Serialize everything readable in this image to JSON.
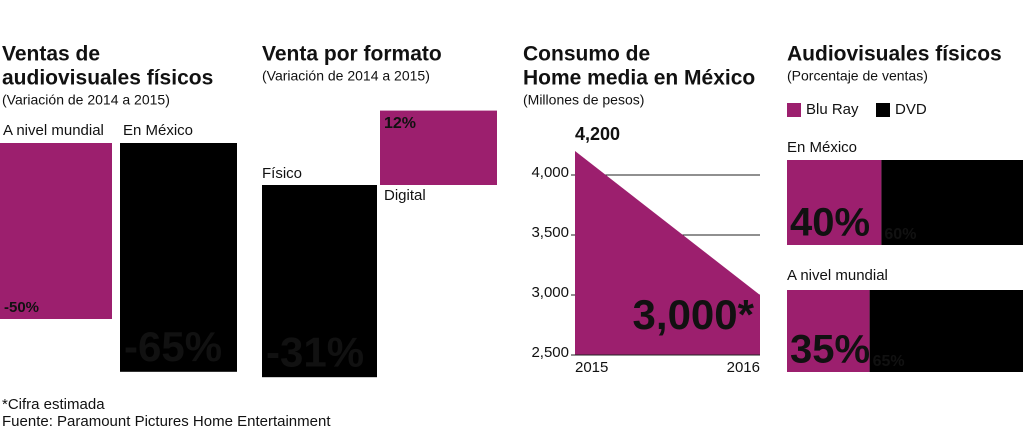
{
  "chart_data": [
    {
      "type": "bar",
      "title": [
        "Ventas de",
        "audiovisuales físicos"
      ],
      "subtitle": "(Variación de 2014 a 2015)",
      "categories": [
        "A nivel mundial",
        "En México"
      ],
      "values": [
        -50,
        -65
      ],
      "value_labels": [
        "-50%",
        "-65%"
      ],
      "colors": [
        "#9c1f6e",
        "#000000"
      ]
    },
    {
      "type": "bar",
      "title": [
        "Venta por formato"
      ],
      "subtitle": "(Variación de 2014 a 2015)",
      "categories": [
        "Físico",
        "Digital"
      ],
      "values": [
        -31,
        12
      ],
      "value_labels": [
        "-31%",
        "12%"
      ],
      "colors": [
        "#000000",
        "#9c1f6e"
      ]
    },
    {
      "type": "area",
      "title": [
        "Consumo de",
        "Home media en México"
      ],
      "subtitle": "(Millones de pesos)",
      "x": [
        "2015",
        "2016"
      ],
      "values": [
        4200,
        3000
      ],
      "value_labels": [
        "4,200",
        "3,000*"
      ],
      "color": "#9c1f6e",
      "ylim": [
        2500,
        4200
      ],
      "yticks": [
        {
          "value": 2500,
          "label": "2,500"
        },
        {
          "value": 3000,
          "label": "3,000"
        },
        {
          "value": 3500,
          "label": "3,500"
        },
        {
          "value": 4000,
          "label": "4,000"
        }
      ],
      "grid": true
    },
    {
      "type": "stacked_bar",
      "title": [
        "Audiovisuales físicos"
      ],
      "subtitle": "(Porcentaje de ventas)",
      "categories": [
        "En México",
        "A nivel mundial"
      ],
      "series": [
        {
          "name": "Blu Ray",
          "color": "#9c1f6e",
          "values": [
            40,
            35
          ],
          "value_labels": [
            "40%",
            "35%"
          ]
        },
        {
          "name": "DVD",
          "color": "#000000",
          "values": [
            60,
            65
          ],
          "value_labels": [
            "60%",
            "65%"
          ]
        }
      ]
    }
  ],
  "notes": [
    "*Cifra estimada",
    "Fuente: Paramount Pictures Home Entertainment"
  ]
}
